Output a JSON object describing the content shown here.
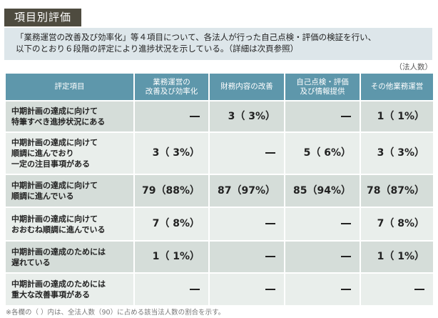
{
  "title": "項目別評価",
  "intro": {
    "line1": "「業務運営の改善及び効率化」等４項目について、各法人が行った自己点検・評価の検証を行い、",
    "line2": "以下のとおり６段階の評定により進捗状況を示している。（詳細は次頁参照）"
  },
  "unit_label": "（法人数）",
  "table": {
    "headers": [
      {
        "line1": "評定項目",
        "line2": ""
      },
      {
        "line1": "業務運営の",
        "line2": "改善及び効率化"
      },
      {
        "line1": "財務内容の改善",
        "line2": ""
      },
      {
        "line1": "自己点検・評価",
        "line2": "及び情報提供"
      },
      {
        "line1": "その他業務運営",
        "line2": ""
      }
    ],
    "rows": [
      {
        "label": [
          "中期計画の達成に向けて",
          "特筆すべき進捗状況にある"
        ],
        "values": [
          "—",
          "3（ 3%）",
          "—",
          "1（ 1%）"
        ]
      },
      {
        "label": [
          "中期計画の達成に向けて",
          "順調に進んでおり",
          "一定の注目事項がある"
        ],
        "values": [
          "3（ 3%）",
          "—",
          "5（ 6%）",
          "3（ 3%）"
        ]
      },
      {
        "label": [
          "中期計画の達成に向けて",
          "順調に進んでいる"
        ],
        "values": [
          "79（88%）",
          "87（97%）",
          "85（94%）",
          "78（87%）"
        ]
      },
      {
        "label": [
          "中期計画の達成に向けて",
          "おおむね順調に進んでいる"
        ],
        "values": [
          "7（ 8%）",
          "—",
          "—",
          "7（ 8%）"
        ]
      },
      {
        "label": [
          "中期計画の達成のためには",
          "遅れている"
        ],
        "values": [
          "1（ 1%）",
          "—",
          "—",
          "1（ 1%）"
        ]
      },
      {
        "label": [
          "中期計画の達成のためには",
          "重大な改善事項がある"
        ],
        "values": [
          "—",
          "—",
          "—",
          "—"
        ]
      }
    ]
  },
  "footnote": "※各欄の（ ）内は、全法人数（90）に占める該当法人数の割合を示す。",
  "colors": {
    "title_bg": "#4e4b3f",
    "intro_bg": "#dde6ea",
    "header_bg": "#5e97ab",
    "row_odd": "#d5ddd9",
    "row_even": "#e9eeeb"
  }
}
